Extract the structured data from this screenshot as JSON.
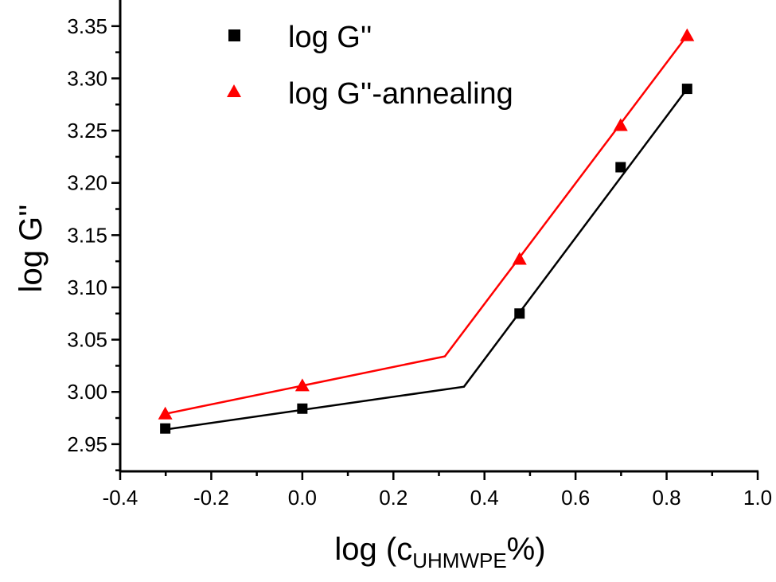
{
  "chart_data": {
    "type": "line",
    "title": "",
    "xlabel": "log (c",
    "xlabel_sub": "UHMWPE",
    "xlabel_suffix": "%)",
    "ylabel": "log G''",
    "xlim": [
      -0.4,
      1.0
    ],
    "ylim": [
      2.924,
      3.375
    ],
    "xticks": [
      "-0.4",
      "-0.2",
      "0.0",
      "0.2",
      "0.4",
      "0.6",
      "0.8",
      "1.0"
    ],
    "yticks": [
      "2.95",
      "3.00",
      "3.05",
      "3.10",
      "3.15",
      "3.20",
      "3.25",
      "3.30",
      "3.35"
    ],
    "grid": false,
    "legend_position": "top",
    "series": [
      {
        "name": "log G''",
        "color": "#000000",
        "marker": "square",
        "x": [
          -0.301,
          0.0,
          0.477,
          0.699,
          0.845
        ],
        "y": [
          2.965,
          2.984,
          3.075,
          3.215,
          3.29
        ],
        "fit": {
          "x": [
            -0.301,
            0.355,
            0.845
          ],
          "y": [
            2.964,
            3.005,
            3.29
          ]
        }
      },
      {
        "name": "log G''-annealing",
        "color": "#ff0000",
        "marker": "triangle",
        "x": [
          -0.301,
          0.0,
          0.477,
          0.699,
          0.845
        ],
        "y": [
          2.979,
          3.006,
          3.127,
          3.255,
          3.341
        ],
        "fit": {
          "x": [
            -0.301,
            0.313,
            0.845
          ],
          "y": [
            2.979,
            3.034,
            3.341
          ]
        }
      }
    ]
  }
}
